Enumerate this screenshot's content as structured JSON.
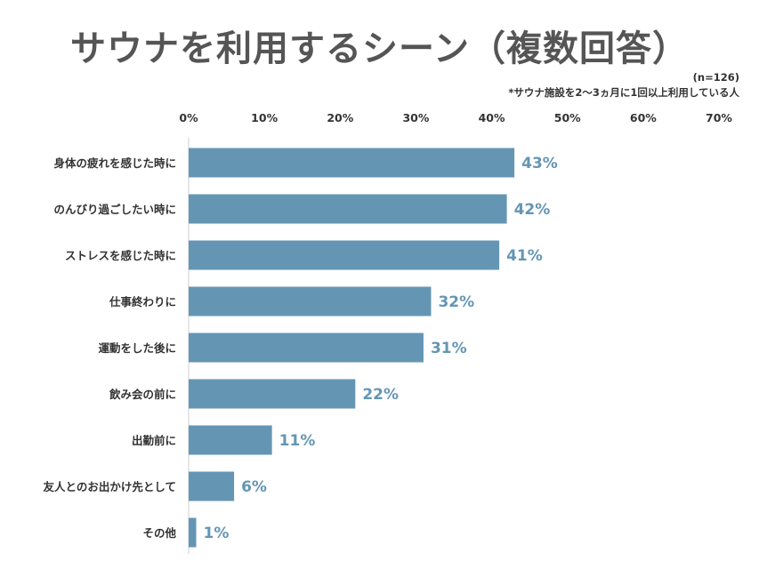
{
  "title": "サウナを利用するシーン（複数回答）",
  "sample_size": "(n=126)",
  "note": "*サウナ施設を2〜3ヵ月に1回以上利用している人",
  "colors": {
    "bar": "#6496b4",
    "value_label": "#6496b4",
    "axis": "#cfcfcf"
  },
  "chart_data": {
    "type": "bar",
    "orientation": "horizontal",
    "title": "サウナを利用するシーン（複数回答）",
    "xlim": [
      0,
      70
    ],
    "x_ticks": [
      "0%",
      "10%",
      "20%",
      "30%",
      "40%",
      "50%",
      "60%",
      "70%"
    ],
    "x_tick_values": [
      0,
      10,
      20,
      30,
      40,
      50,
      60,
      70
    ],
    "categories": [
      "身体の疲れを感じた時に",
      "のんびり過ごしたい時に",
      "ストレスを感じた時に",
      "仕事終わりに",
      "運動をした後に",
      "飲み会の前に",
      "出勤前に",
      "友人とのお出かけ先として",
      "その他"
    ],
    "values": [
      43,
      42,
      41,
      32,
      31,
      22,
      11,
      6,
      1
    ],
    "value_labels": [
      "43%",
      "42%",
      "41%",
      "32%",
      "31%",
      "22%",
      "11%",
      "6%",
      "1%"
    ],
    "grid": false,
    "legend": "none"
  }
}
